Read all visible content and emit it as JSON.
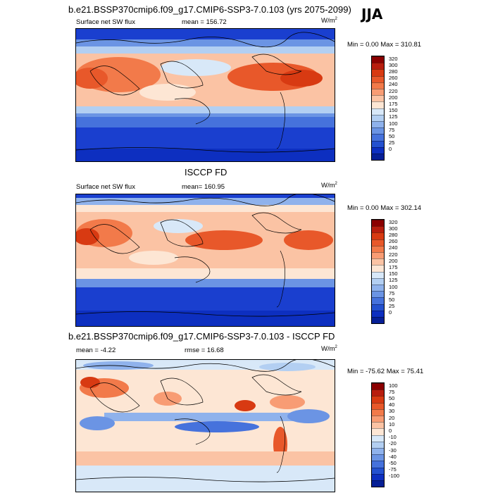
{
  "season": "JJA",
  "panel1": {
    "title": "b.e21.BSSP370cmip6.f09_g17.CMIP6-SSP3-7.0.103 (yrs 2075-2099)",
    "left_label": "Surface net SW flux",
    "mean_label": "mean = 156.72",
    "units_label": "W/m",
    "units_sup": "2",
    "minmax_label": "Min =   0.00 Max = 310.81"
  },
  "panel2": {
    "title": "ISCCP FD",
    "left_label": "Surface net SW flux",
    "mean_label": "mean= 160.95",
    "units_label": "W/m",
    "units_sup": "2",
    "minmax_label": "Min =   0.00 Max = 302.14"
  },
  "panel3": {
    "title": "b.e21.BSSP370cmip6.f09_g17.CMIP6-SSP3-7.0.103 - ISCCP FD",
    "mean_label": "mean =  -4.22",
    "rmse_label": "rmse =  16.68",
    "units_label": "W/m",
    "units_sup": "2",
    "minmax_label": "Min = -75.62 Max =  75.41"
  },
  "colorbar_abs": {
    "labels": [
      "320",
      "300",
      "280",
      "260",
      "240",
      "220",
      "200",
      "175",
      "150",
      "125",
      "100",
      "75",
      "50",
      "25",
      "0"
    ],
    "colors": [
      "#8b0000",
      "#b81d0e",
      "#d83a12",
      "#e8582a",
      "#f27a4a",
      "#f89c74",
      "#fbc3a4",
      "#fde6d4",
      "#d8e8f8",
      "#b3cff2",
      "#8fb2ec",
      "#6b94e4",
      "#4672dc",
      "#2451cf",
      "#0d2fc0",
      "#061f96"
    ]
  },
  "colorbar_diff": {
    "labels": [
      "100",
      "75",
      "50",
      "40",
      "30",
      "20",
      "10",
      "0",
      "-10",
      "-20",
      "-30",
      "-40",
      "-50",
      "-75",
      "-100"
    ],
    "colors": [
      "#8b0000",
      "#b81d0e",
      "#d83a12",
      "#e8582a",
      "#f27a4a",
      "#f89c74",
      "#fbc3a4",
      "#fde6d4",
      "#d8e8f8",
      "#b3cff2",
      "#8fb2ec",
      "#6b94e4",
      "#4672dc",
      "#2451cf",
      "#0d2fc0",
      "#061f96"
    ]
  }
}
